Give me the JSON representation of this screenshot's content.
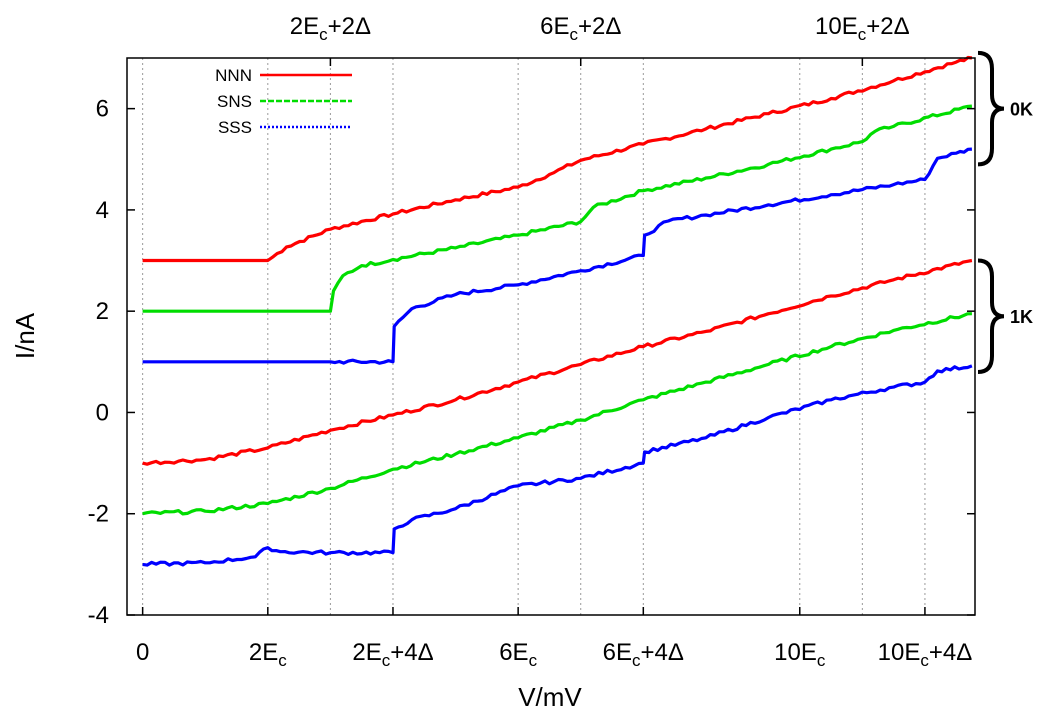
{
  "chart_data": {
    "type": "line",
    "xlabel": "V/mV",
    "ylabel": "I/nA",
    "xlim": [
      -0.25,
      13.3
    ],
    "ylim": [
      -4,
      7
    ],
    "grid": true,
    "legend_position": "top-left",
    "y_ticks": [
      -4,
      -2,
      0,
      2,
      4,
      6
    ],
    "x_ticks_bottom": [
      {
        "v": 0,
        "label": "0"
      },
      {
        "v": 2,
        "label": "2E",
        "sub": "c",
        "tail": ""
      },
      {
        "v": 4,
        "label": "2E",
        "sub": "c",
        "tail": "+4Δ"
      },
      {
        "v": 6,
        "label": "6E",
        "sub": "c",
        "tail": ""
      },
      {
        "v": 8,
        "label": "6E",
        "sub": "c",
        "tail": "+4Δ"
      },
      {
        "v": 10.5,
        "label": "10E",
        "sub": "c",
        "tail": ""
      },
      {
        "v": 12.5,
        "label": "10E",
        "sub": "c",
        "tail": "+4Δ"
      }
    ],
    "x_ticks_top": [
      {
        "v": 3,
        "label": "2E",
        "sub": "c",
        "tail": "+2Δ"
      },
      {
        "v": 7,
        "label": "6E",
        "sub": "c",
        "tail": "+2Δ"
      },
      {
        "v": 11.5,
        "label": "10E",
        "sub": "c",
        "tail": "+2Δ"
      }
    ],
    "grid_x": [
      0,
      2,
      3,
      4,
      6,
      7,
      8,
      10.5,
      11.5,
      12.5
    ],
    "brackets": [
      {
        "label": "0K",
        "y_range": [
          4.9,
          7.1
        ]
      },
      {
        "label": "1K",
        "y_range": [
          0.8,
          3.0
        ]
      }
    ],
    "legend": [
      {
        "name": "NNN",
        "color": "#ff0000"
      },
      {
        "name": "SNS",
        "color": "#00dd00"
      },
      {
        "name": "SSS",
        "color": "#0000ff"
      }
    ],
    "series": [
      {
        "legend": "NNN",
        "group": "0K",
        "color": "#ff0000",
        "points": [
          [
            0,
            3.0
          ],
          [
            1,
            3.0
          ],
          [
            2,
            3.0
          ],
          [
            2.3,
            3.27
          ],
          [
            3,
            3.62
          ],
          [
            4,
            3.92
          ],
          [
            5,
            4.2
          ],
          [
            6,
            4.45
          ],
          [
            6.5,
            4.7
          ],
          [
            7,
            4.98
          ],
          [
            8,
            5.3
          ],
          [
            9,
            5.6
          ],
          [
            10,
            5.9
          ],
          [
            11,
            6.2
          ],
          [
            12,
            6.55
          ],
          [
            13,
            6.92
          ],
          [
            13.25,
            7.0
          ]
        ]
      },
      {
        "legend": "SNS",
        "group": "0K",
        "color": "#00dd00",
        "points": [
          [
            0,
            2.0
          ],
          [
            1,
            2.0
          ],
          [
            2,
            2.0
          ],
          [
            3,
            2.0
          ],
          [
            3.05,
            2.4
          ],
          [
            3.2,
            2.7
          ],
          [
            3.5,
            2.9
          ],
          [
            4,
            3.02
          ],
          [
            5,
            3.25
          ],
          [
            6,
            3.5
          ],
          [
            7,
            3.77
          ],
          [
            7.2,
            4.05
          ],
          [
            8,
            4.38
          ],
          [
            9,
            4.63
          ],
          [
            10,
            4.9
          ],
          [
            11,
            5.2
          ],
          [
            11.5,
            5.35
          ],
          [
            11.7,
            5.55
          ],
          [
            12,
            5.65
          ],
          [
            13.25,
            6.05
          ]
        ]
      },
      {
        "legend": "SSS",
        "group": "0K",
        "color": "#0000ff",
        "points": [
          [
            0,
            1.0
          ],
          [
            1,
            1.0
          ],
          [
            2,
            1.0
          ],
          [
            3,
            1.0
          ],
          [
            4,
            1.0
          ],
          [
            4.02,
            1.7
          ],
          [
            4.3,
            2.05
          ],
          [
            5,
            2.33
          ],
          [
            6,
            2.52
          ],
          [
            7,
            2.8
          ],
          [
            8,
            3.1
          ],
          [
            8.02,
            3.5
          ],
          [
            8.4,
            3.78
          ],
          [
            9,
            3.9
          ],
          [
            10,
            4.1
          ],
          [
            11,
            4.3
          ],
          [
            12,
            4.5
          ],
          [
            12.5,
            4.6
          ],
          [
            12.7,
            5.02
          ],
          [
            13,
            5.12
          ],
          [
            13.25,
            5.2
          ]
        ]
      },
      {
        "legend": "NNN",
        "group": "1K",
        "color": "#ff0000",
        "points": [
          [
            0,
            -1.0
          ],
          [
            1,
            -0.93
          ],
          [
            2,
            -0.7
          ],
          [
            3,
            -0.35
          ],
          [
            4,
            -0.05
          ],
          [
            5,
            0.25
          ],
          [
            6,
            0.6
          ],
          [
            7,
            0.95
          ],
          [
            8,
            1.3
          ],
          [
            9,
            1.6
          ],
          [
            10,
            1.95
          ],
          [
            11,
            2.3
          ],
          [
            12,
            2.62
          ],
          [
            13.25,
            3.0
          ]
        ]
      },
      {
        "legend": "SNS",
        "group": "1K",
        "color": "#00dd00",
        "points": [
          [
            0,
            -2.0
          ],
          [
            1,
            -1.95
          ],
          [
            2,
            -1.8
          ],
          [
            3,
            -1.5
          ],
          [
            4,
            -1.12
          ],
          [
            5,
            -0.82
          ],
          [
            6,
            -0.5
          ],
          [
            7,
            -0.15
          ],
          [
            8,
            0.25
          ],
          [
            9,
            0.6
          ],
          [
            10,
            0.95
          ],
          [
            11,
            1.3
          ],
          [
            12,
            1.62
          ],
          [
            13.25,
            1.95
          ]
        ]
      },
      {
        "legend": "SSS",
        "group": "1K",
        "color": "#0000ff",
        "points": [
          [
            0,
            -3.0
          ],
          [
            1,
            -2.97
          ],
          [
            1.8,
            -2.85
          ],
          [
            2,
            -2.67
          ],
          [
            2.2,
            -2.75
          ],
          [
            3,
            -2.77
          ],
          [
            4,
            -2.77
          ],
          [
            4.02,
            -2.3
          ],
          [
            4.3,
            -2.12
          ],
          [
            5,
            -1.9
          ],
          [
            6,
            -1.45
          ],
          [
            7,
            -1.3
          ],
          [
            8,
            -1.0
          ],
          [
            8.02,
            -0.78
          ],
          [
            9,
            -0.5
          ],
          [
            10,
            -0.1
          ],
          [
            11,
            0.25
          ],
          [
            12,
            0.5
          ],
          [
            12.5,
            0.6
          ],
          [
            12.7,
            0.82
          ],
          [
            13.25,
            0.92
          ]
        ]
      }
    ]
  }
}
